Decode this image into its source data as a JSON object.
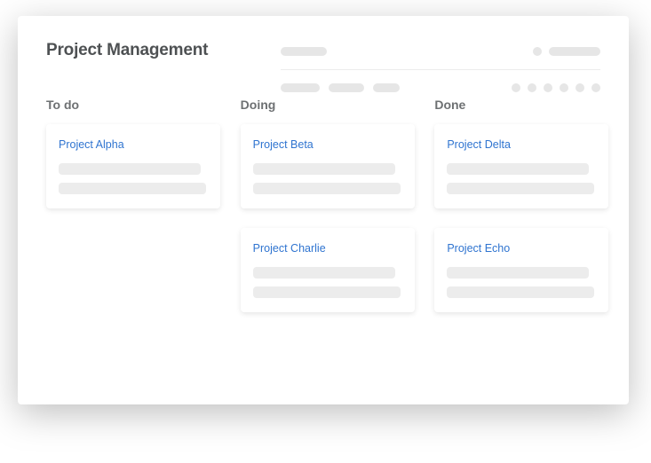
{
  "colors": {
    "title_text": "#4e5153",
    "col_header_text": "#6d7072",
    "link_blue": "#2f74d0",
    "placeholder": "#e6e6e6",
    "card_line": "#ececec",
    "divider": "#ececec",
    "card_bg": "#ffffff",
    "panel_bg": "#ffffff"
  },
  "header": {
    "title": "Project Management",
    "top_row": {
      "left_pill_width": 52,
      "right_dot_diameter": 10,
      "right_pill_width": 58
    },
    "bottom_row": {
      "left_pills_width": [
        44,
        40,
        30
      ],
      "right_dots_count": 6,
      "right_dot_diameter": 10
    }
  },
  "board": {
    "columns": [
      {
        "title": "To do",
        "cards": [
          {
            "title": "Project Alpha",
            "line_widths": [
              160,
              166
            ]
          }
        ]
      },
      {
        "title": "Doing",
        "cards": [
          {
            "title": "Project Beta",
            "line_widths": [
              160,
              166
            ]
          },
          {
            "title": "Project Charlie",
            "line_widths": [
              160,
              166
            ]
          }
        ]
      },
      {
        "title": "Done",
        "cards": [
          {
            "title": "Project Delta",
            "line_widths": [
              160,
              166
            ]
          },
          {
            "title": "Project Echo",
            "line_widths": [
              160,
              166
            ]
          }
        ]
      }
    ]
  }
}
